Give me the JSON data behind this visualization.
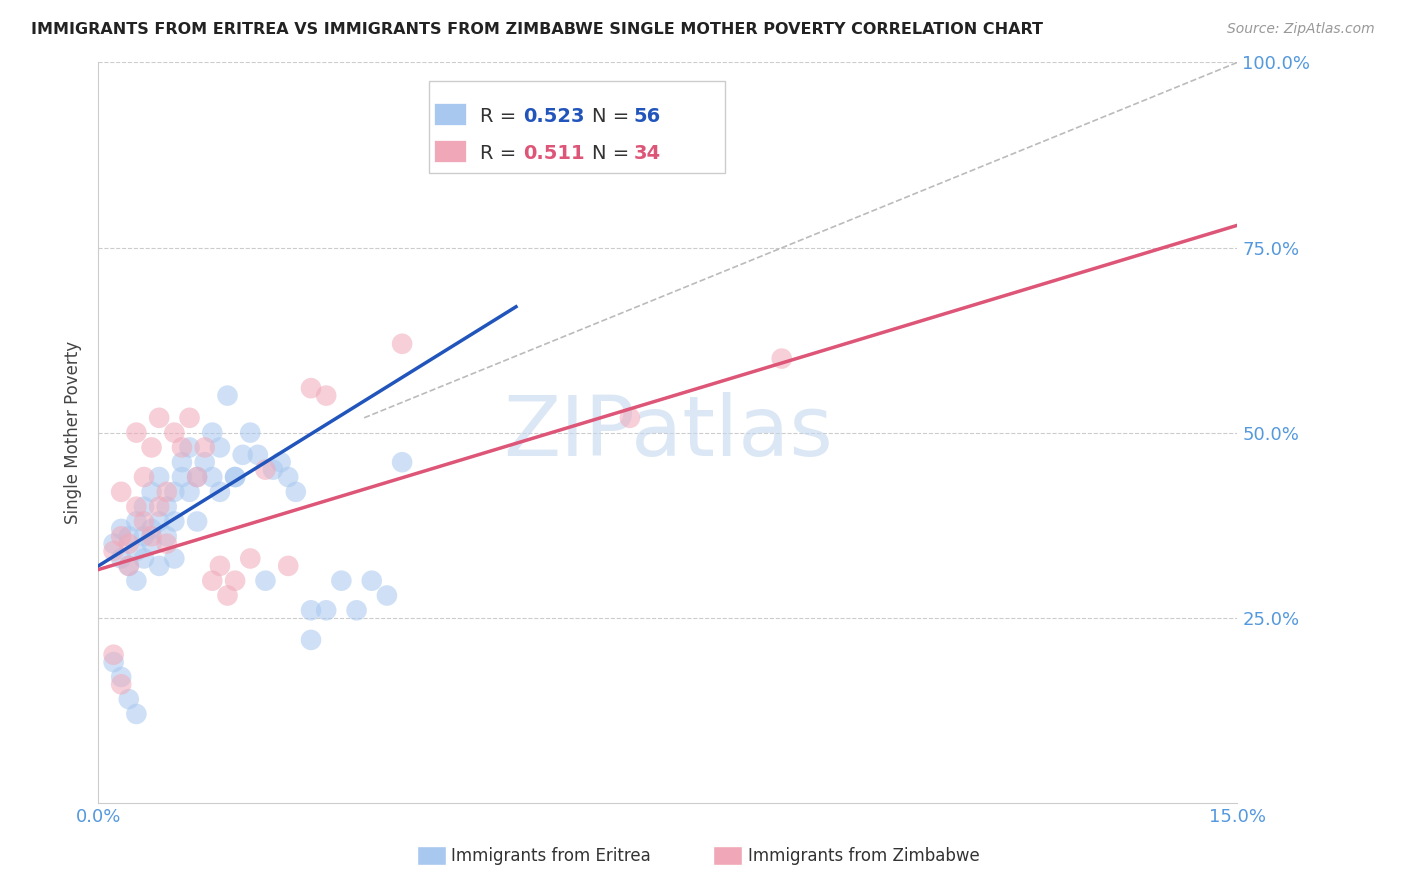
{
  "title": "IMMIGRANTS FROM ERITREA VS IMMIGRANTS FROM ZIMBABWE SINGLE MOTHER POVERTY CORRELATION CHART",
  "source": "Source: ZipAtlas.com",
  "ylabel": "Single Mother Poverty",
  "legend_label_eritrea": "Immigrants from Eritrea",
  "legend_label_zimbabwe": "Immigrants from Zimbabwe",
  "r_eritrea": "0.523",
  "n_eritrea": "56",
  "r_zimbabwe": "0.511",
  "n_zimbabwe": "34",
  "xlim": [
    0.0,
    0.15
  ],
  "ylim": [
    0.0,
    1.0
  ],
  "color_eritrea": "#a8c8f0",
  "color_zimbabwe": "#f0a8b8",
  "line_color_eritrea": "#2255bb",
  "line_color_zimbabwe": "#dd5577",
  "axis_color": "#5599dd",
  "ref_line_color": "#bbbbbb",
  "grid_color": "#cccccc",
  "watermark_color": "#c5d8f0",
  "title_color": "#222222",
  "source_color": "#999999",
  "ylabel_color": "#444444",
  "eri_line_x0": 0.0,
  "eri_line_y0": 0.32,
  "eri_line_x1": 0.055,
  "eri_line_y1": 0.67,
  "zim_line_x0": 0.0,
  "zim_line_y0": 0.315,
  "zim_line_x1": 0.15,
  "zim_line_y1": 0.78,
  "ref_line_x0": 0.035,
  "ref_line_y0": 0.52,
  "ref_line_x1": 0.15,
  "ref_line_y1": 1.0
}
